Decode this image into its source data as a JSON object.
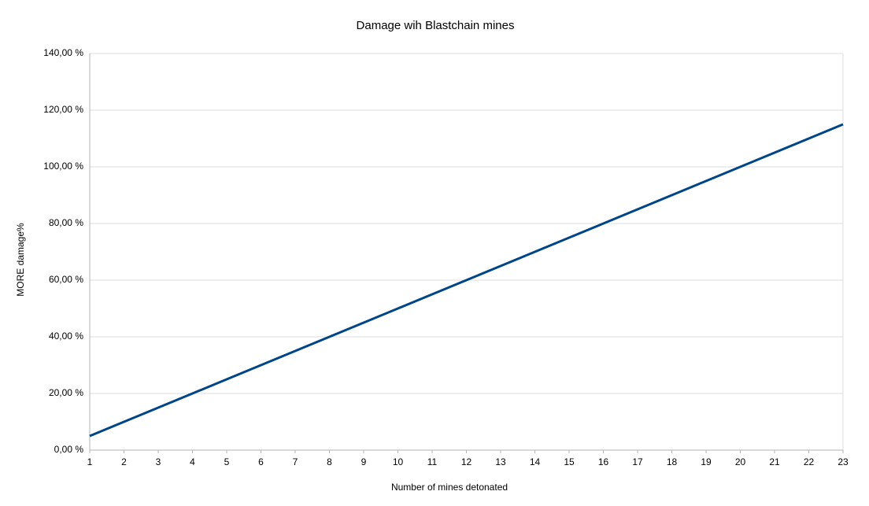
{
  "chart_data": {
    "type": "line",
    "title": "Damage wih Blastchain mines",
    "x_label": "Number of mines detonated",
    "y_label": "MORE damage%",
    "x": [
      1,
      2,
      3,
      4,
      5,
      6,
      7,
      8,
      9,
      10,
      11,
      12,
      13,
      14,
      15,
      16,
      17,
      18,
      19,
      20,
      21,
      22,
      23
    ],
    "series": [
      {
        "color": "#004586",
        "values": [
          5,
          10,
          15,
          20,
          25,
          30,
          35,
          40,
          45,
          50,
          55,
          60,
          65,
          70,
          75,
          80,
          85,
          90,
          95,
          100,
          105,
          110,
          115
        ]
      }
    ],
    "xlim": [
      1,
      23
    ],
    "xticks": [
      1,
      2,
      3,
      4,
      5,
      6,
      7,
      8,
      9,
      10,
      11,
      12,
      13,
      14,
      15,
      16,
      17,
      18,
      19,
      20,
      21,
      22,
      23
    ],
    "ylim": [
      0,
      140
    ],
    "yticks": [
      {
        "value": 0,
        "label": "0,00 %"
      },
      {
        "value": 20,
        "label": "20,00 %"
      },
      {
        "value": 40,
        "label": "40,00 %"
      },
      {
        "value": 60,
        "label": "60,00 %"
      },
      {
        "value": 80,
        "label": "80,00 %"
      },
      {
        "value": 100,
        "label": "100,00 %"
      },
      {
        "value": 120,
        "label": "120,00 %"
      },
      {
        "value": 140,
        "label": "140,00 %"
      }
    ],
    "grid": true
  }
}
